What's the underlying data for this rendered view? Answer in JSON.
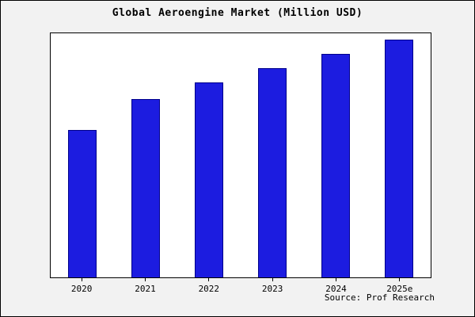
{
  "title": "Global Aeroengine Market (Million USD)",
  "source": "Source: Prof Research",
  "colors": {
    "bar_fill": "#1c1ce0",
    "bar_border": "#00008b",
    "background": "#f2f2f2",
    "plot_background": "#ffffff"
  },
  "chart_data": {
    "type": "bar",
    "title": "Global Aeroengine Market (Million USD)",
    "categories": [
      "2020",
      "2021",
      "2022",
      "2023",
      "2024",
      "2025e"
    ],
    "values": [
      62,
      75,
      82,
      88,
      94,
      100
    ],
    "xlabel": "",
    "ylabel": "",
    "ylim": [
      0,
      100
    ],
    "y_axis_labels_visible": false,
    "note": "No y-axis tick labels are visible in the chart; values are relative bar heights expressed as percent of the tallest bar (2025e = 100).",
    "grid": false,
    "legend": false,
    "source": "Source: Prof Research"
  }
}
